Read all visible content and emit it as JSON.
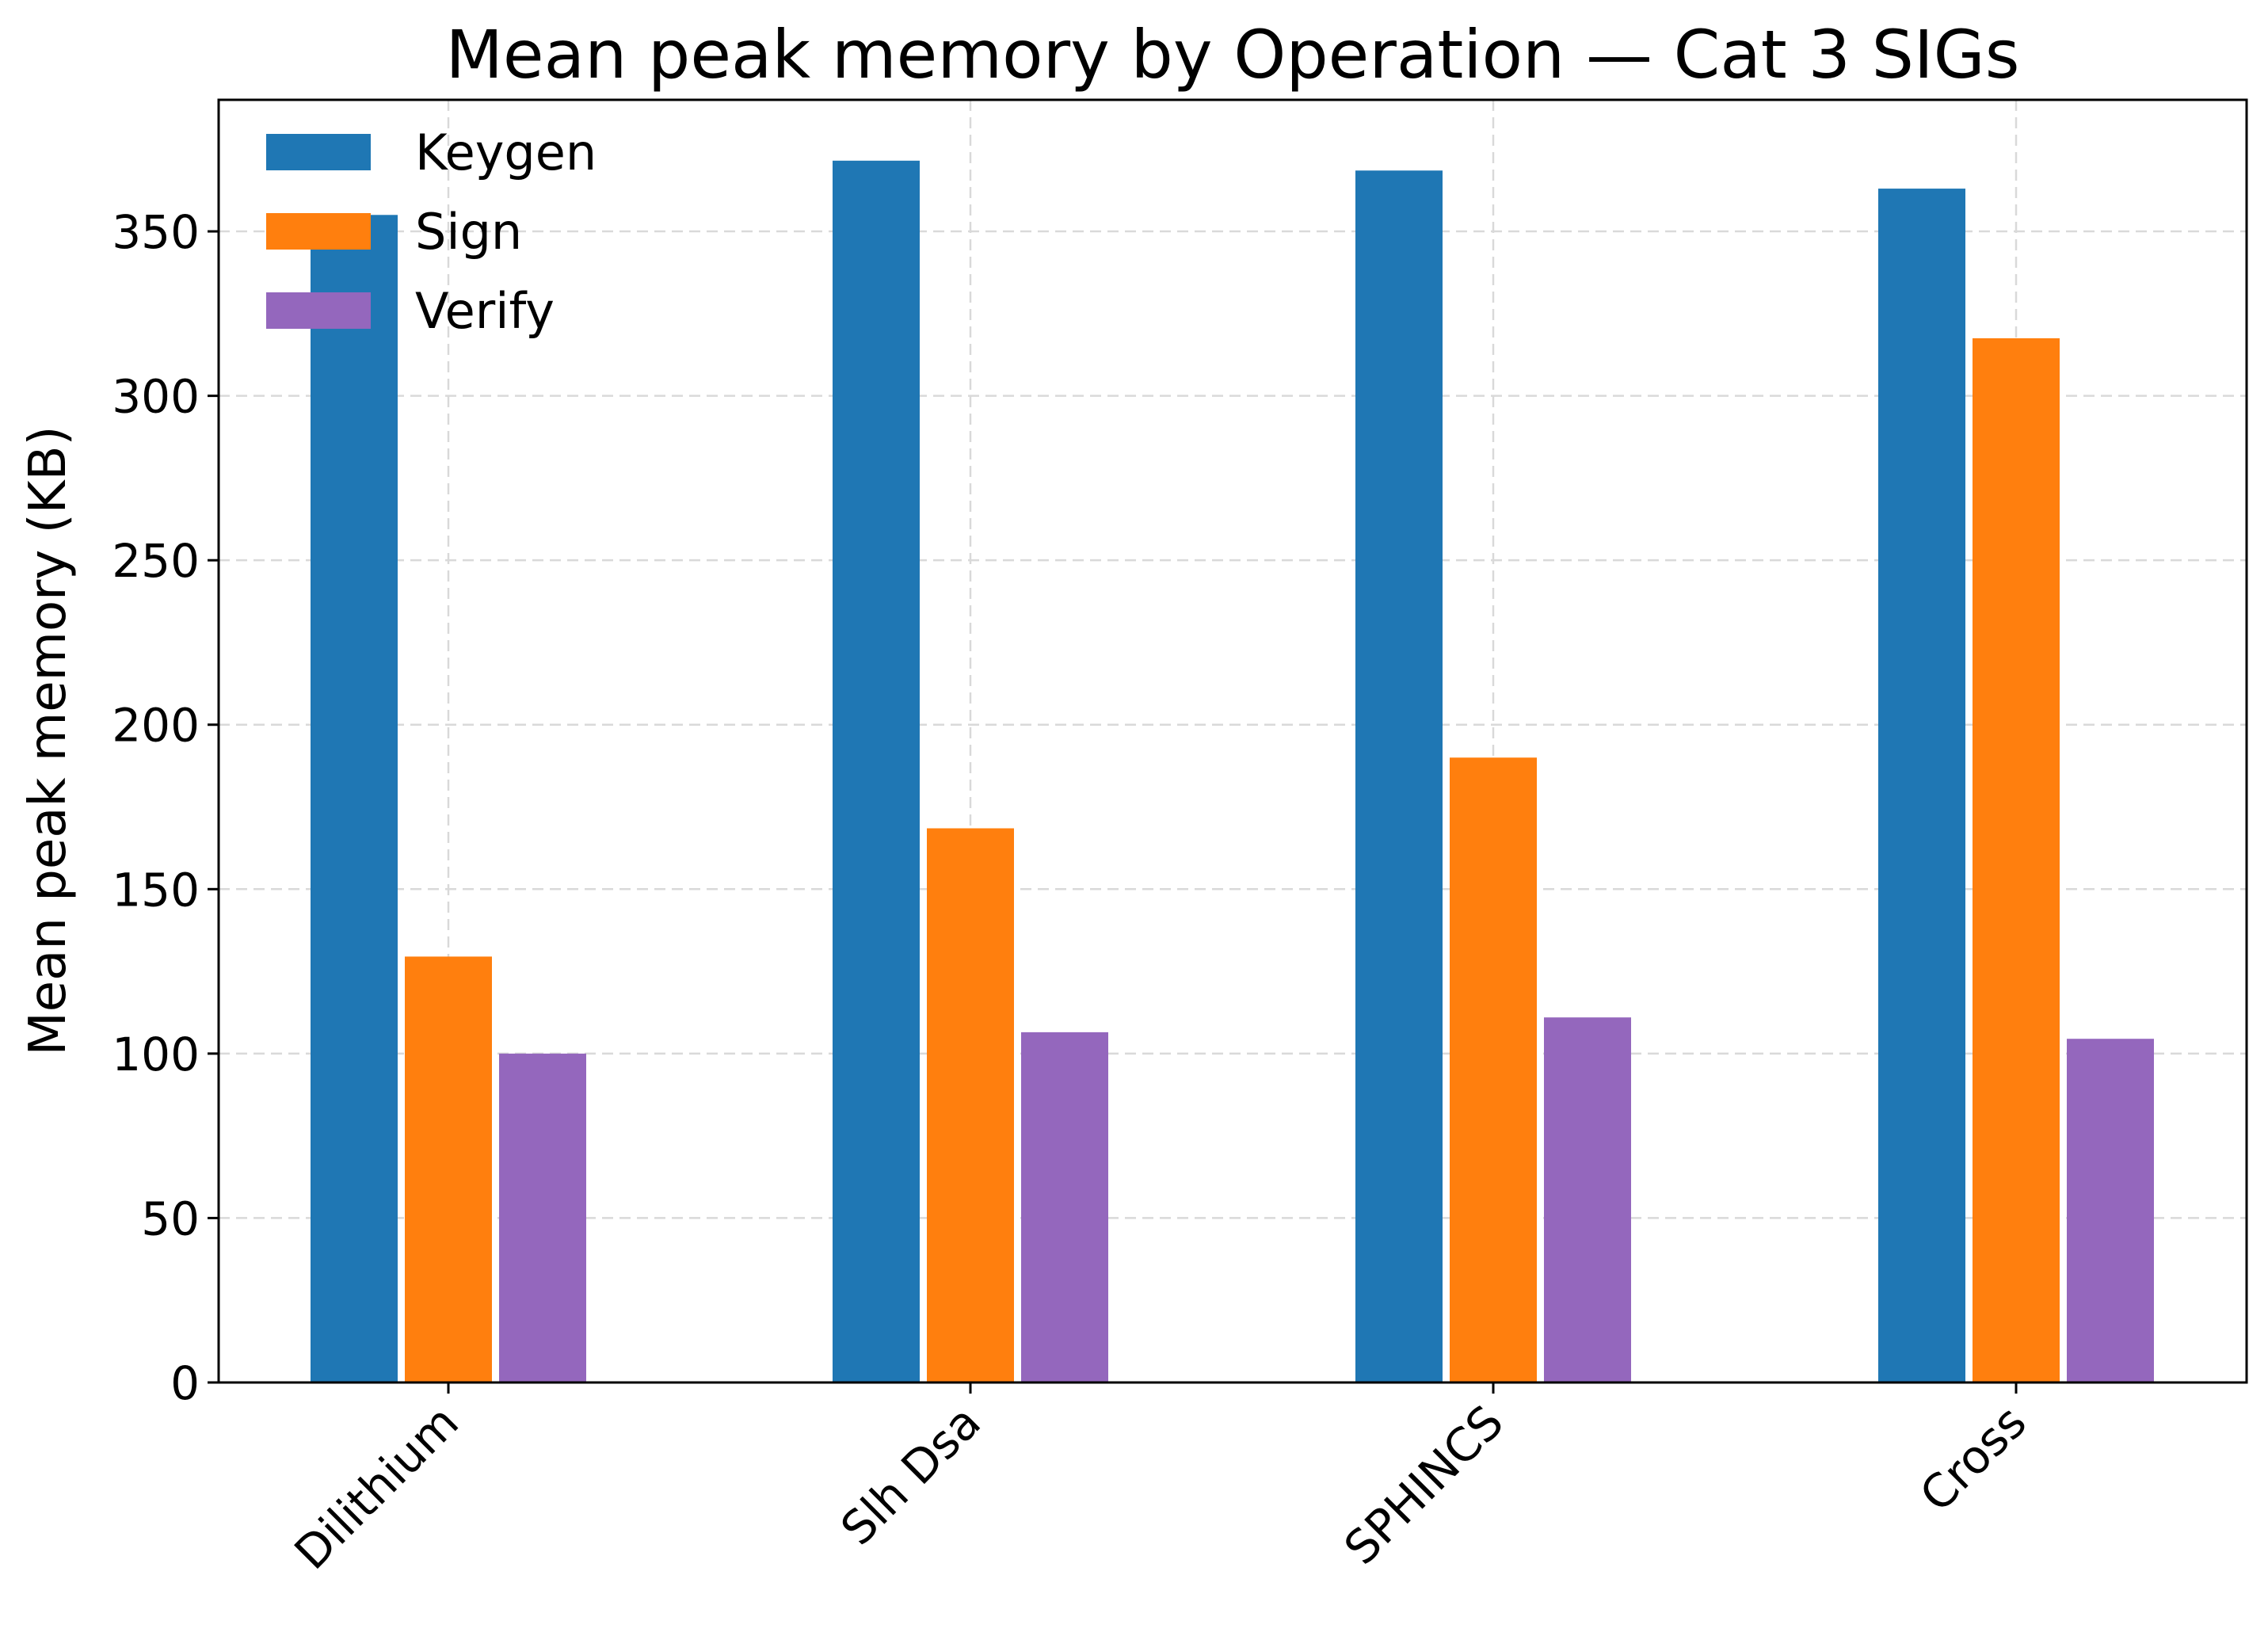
{
  "chart_data": {
    "type": "bar",
    "title": "Mean peak memory by Operation — Cat 3 SIGs",
    "xlabel": "",
    "ylabel": "Mean peak memory (KB)",
    "ylim": [
      0,
      390
    ],
    "yticks": [
      0,
      50,
      100,
      150,
      200,
      250,
      300,
      350
    ],
    "categories": [
      "Dilithium",
      "Slh Dsa",
      "SPHINCS",
      "Cross"
    ],
    "series": [
      {
        "name": "Keygen",
        "color": "#1f77b4",
        "values": [
          355,
          371.5,
          368.5,
          363
        ]
      },
      {
        "name": "Sign",
        "color": "#ff7f0e",
        "values": [
          129.5,
          168.5,
          190,
          317.5
        ]
      },
      {
        "name": "Verify",
        "color": "#9467bd",
        "values": [
          100,
          106.5,
          111,
          104.5
        ]
      }
    ],
    "grid": true,
    "legend_position": "top-left",
    "xtick_rotation": "45 degrees"
  }
}
